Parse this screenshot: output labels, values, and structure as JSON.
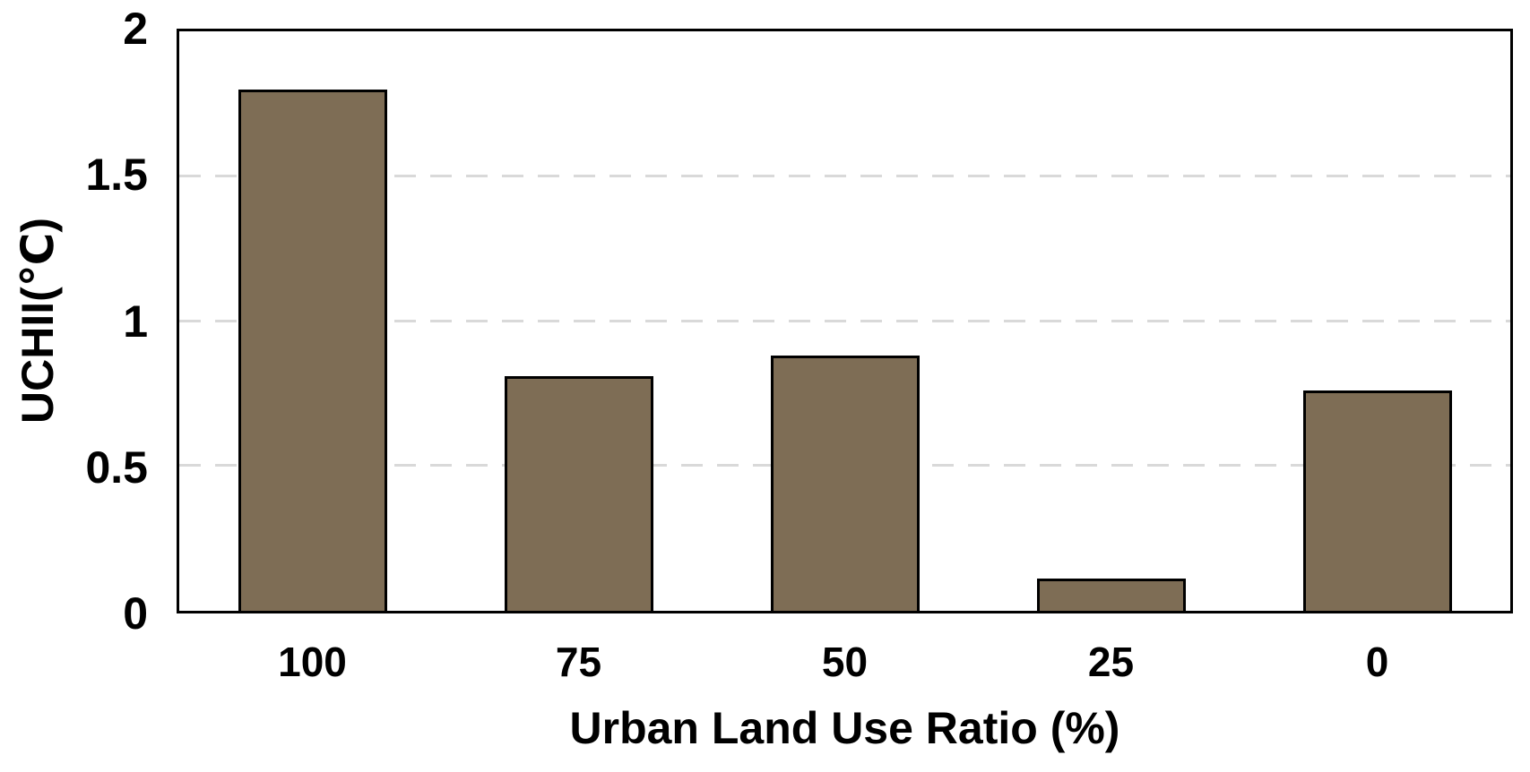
{
  "chart_data": {
    "type": "bar",
    "title": "",
    "categories": [
      "100",
      "75",
      "50",
      "25",
      "0"
    ],
    "values": [
      1.8,
      0.81,
      0.88,
      0.11,
      0.76
    ],
    "xlabel": "Urban Land Use Ratio (%)",
    "ylabel": "UCHII(℃)",
    "ylim": [
      0,
      2
    ],
    "yticks": [
      {
        "value": 0,
        "label": "0"
      },
      {
        "value": 0.5,
        "label": "0.5"
      },
      {
        "value": 1,
        "label": "1"
      },
      {
        "value": 1.5,
        "label": "1.5"
      },
      {
        "value": 2,
        "label": "2"
      }
    ],
    "gridline_values": [
      0.5,
      1,
      1.5
    ],
    "grid_style": "dashed-horizontal",
    "legend_position": "none",
    "colors": {
      "bar_fill": "#7E6D55",
      "bar_border": "#000000",
      "gridline": "#D9D9D9",
      "axis": "#000000",
      "text": "#000000",
      "background": "#FFFFFF"
    }
  }
}
